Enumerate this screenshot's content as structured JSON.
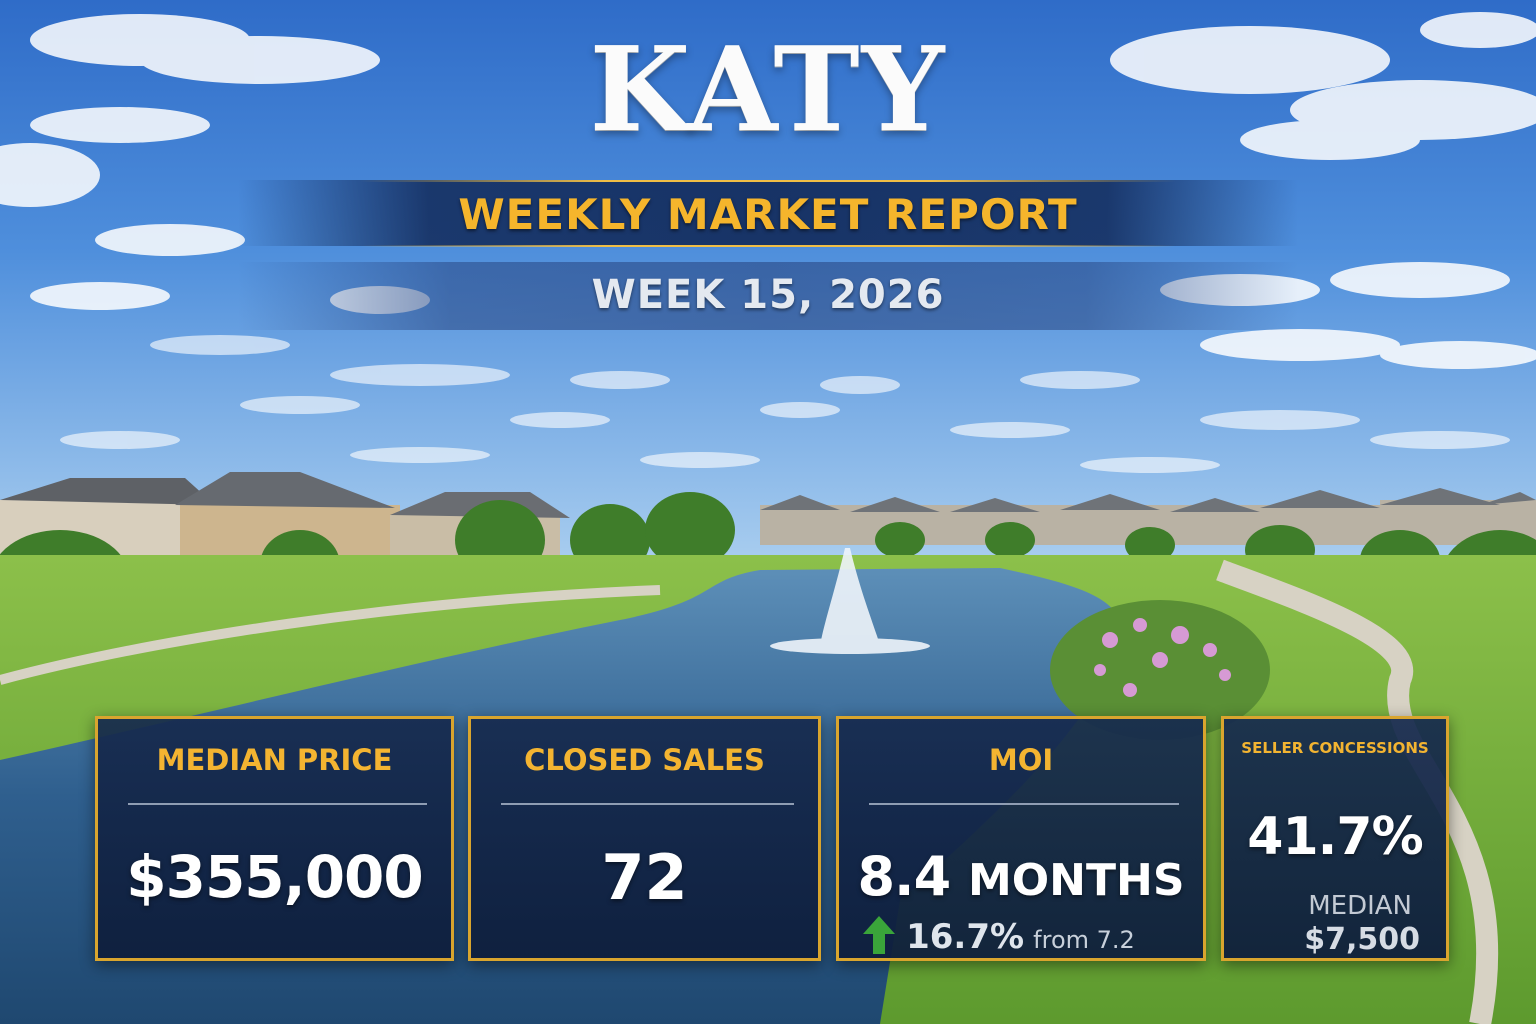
{
  "title": "KATY",
  "subtitle": "WEEKLY MARKET REPORT",
  "week": "WEEK 15, 2026",
  "stats": {
    "median_price": {
      "label": "MEDIAN PRICE",
      "value": "$355,000"
    },
    "closed_sales": {
      "label": "CLOSED SALES",
      "value": "72"
    },
    "moi": {
      "label": "MOI",
      "value": "8.4",
      "unit": "MONTHS",
      "change": "16.7%",
      "change_direction": "up",
      "from_text": "from 7.2"
    },
    "seller_concessions": {
      "label": "SELLER CONCESSIONS",
      "value": "41.7%",
      "median_label": "MEDIAN",
      "median_value": "$7,500"
    }
  },
  "colors": {
    "accent_gold": "#f3b431",
    "card_navy": "#162a4e",
    "up_arrow": "#3aa53a"
  }
}
